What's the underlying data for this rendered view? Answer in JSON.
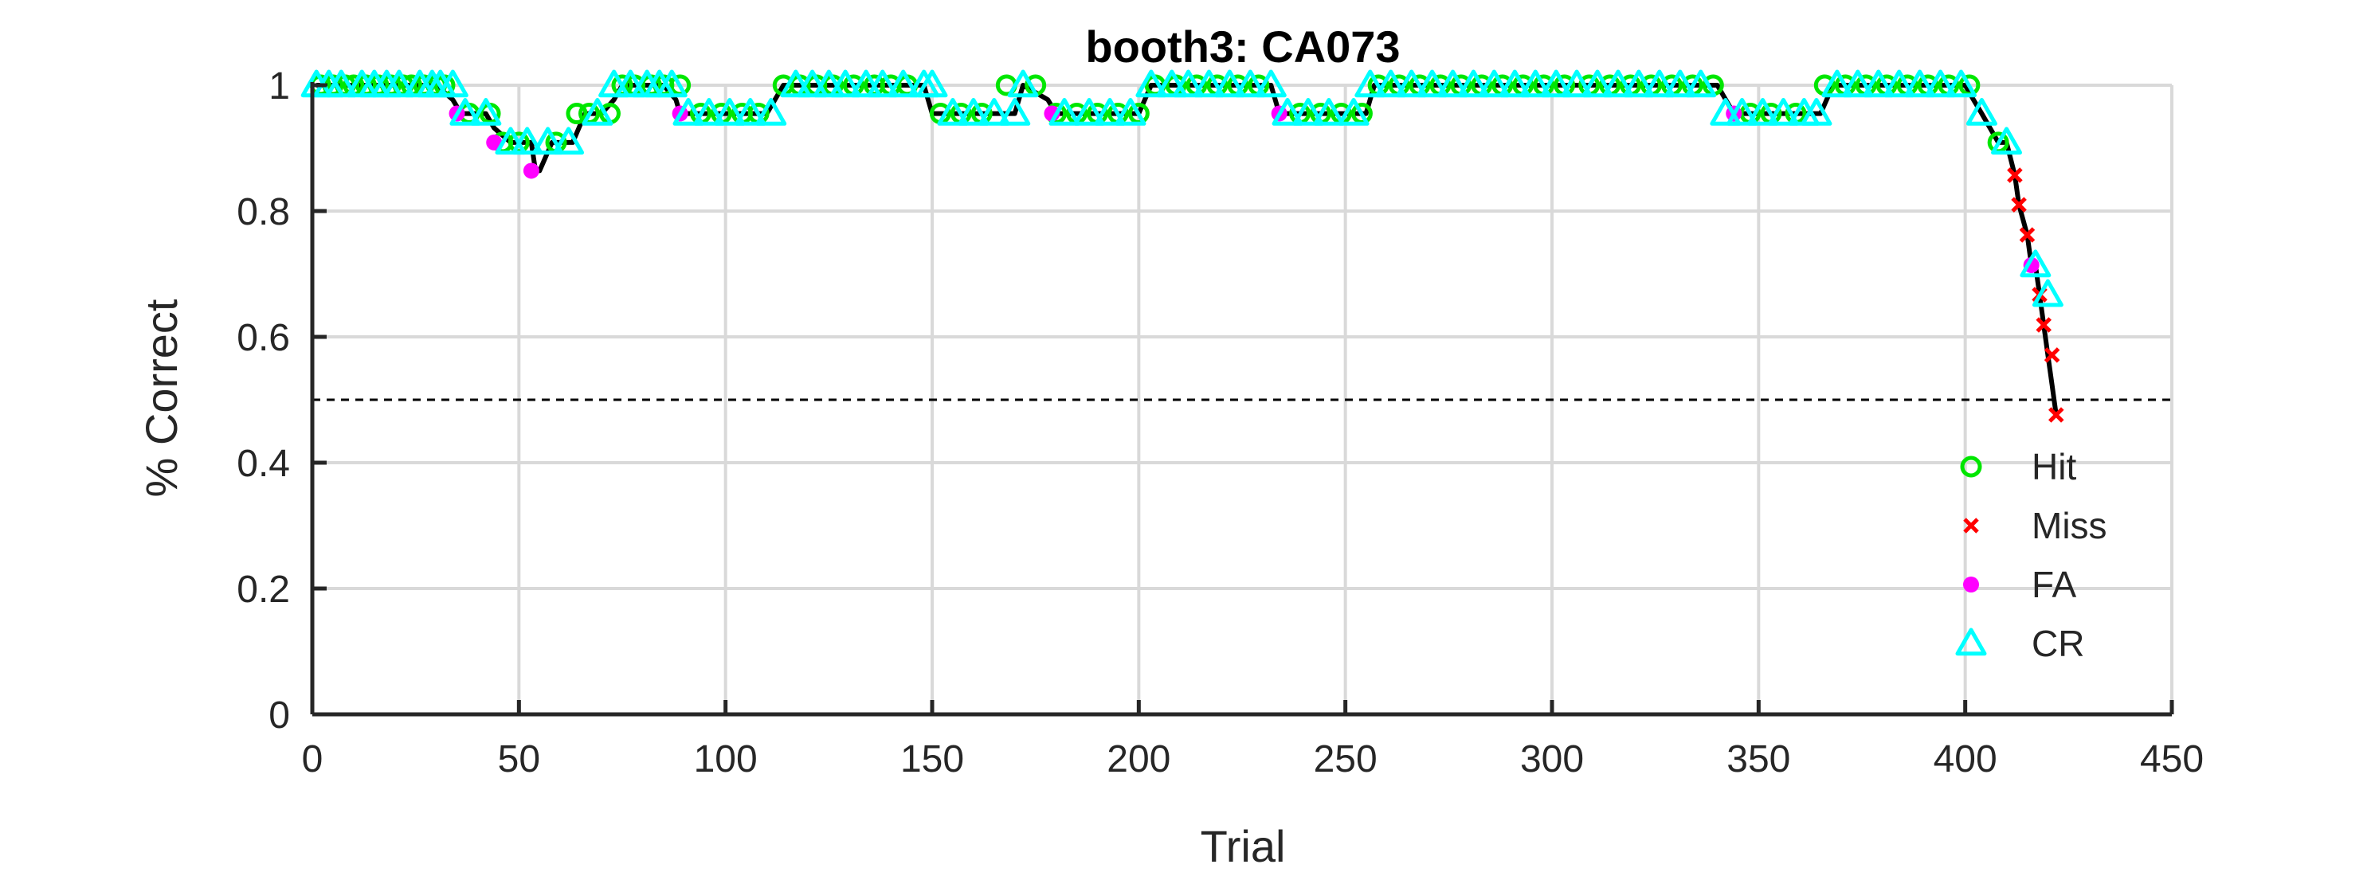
{
  "chart_data": {
    "type": "scatter",
    "title": "booth3: CA073",
    "xlabel": "Trial",
    "ylabel": "% Correct",
    "xlim": [
      0,
      450
    ],
    "ylim": [
      0,
      1
    ],
    "xticks": [
      0,
      50,
      100,
      150,
      200,
      250,
      300,
      350,
      400,
      450
    ],
    "yticks": [
      0,
      0.2,
      0.4,
      0.6,
      0.8,
      1
    ],
    "xtick_labels": [
      "0",
      "50",
      "100",
      "150",
      "200",
      "250",
      "300",
      "350",
      "400",
      "450"
    ],
    "ytick_labels": [
      "0",
      "0.2",
      "0.4",
      "0.6",
      "0.8",
      "1"
    ],
    "grid": true,
    "reference_line": {
      "y": 0.5,
      "style": "dashed",
      "color": "#000000"
    },
    "legend_position": "bottom-right",
    "legend": [
      "Hit",
      "Miss",
      "FA",
      "CR"
    ],
    "colors": {
      "Hit": "#00e600",
      "Miss": "#ff0000",
      "FA": "#ff00ff",
      "CR": "#00ffff",
      "line": "#000000",
      "grid": "#d9d9d9",
      "axis": "#262626"
    },
    "series": [
      {
        "name": "Hit",
        "marker": "circle",
        "x": [
          2,
          5,
          8,
          10,
          13,
          16,
          19,
          22,
          24,
          27,
          30,
          32,
          38,
          43,
          46,
          50,
          59,
          64,
          67,
          72,
          75,
          78,
          82,
          85,
          89,
          94,
          99,
          104,
          108,
          114,
          118,
          122,
          126,
          131,
          136,
          140,
          144,
          152,
          157,
          162,
          168,
          175,
          180,
          185,
          190,
          195,
          200,
          204,
          209,
          214,
          219,
          224,
          229,
          239,
          244,
          249,
          254,
          258,
          263,
          268,
          273,
          278,
          283,
          288,
          293,
          298,
          303,
          309,
          314,
          319,
          324,
          329,
          334,
          339,
          348,
          353,
          359,
          366,
          371,
          376,
          381,
          386,
          391,
          396,
          401,
          408
        ],
        "y": [
          1,
          1,
          1,
          1,
          1,
          1,
          1,
          1,
          1,
          1,
          1,
          1,
          0.955,
          0.955,
          0.909,
          0.909,
          0.909,
          0.955,
          0.955,
          0.955,
          1,
          1,
          1,
          1,
          1,
          0.955,
          0.955,
          0.955,
          0.955,
          1,
          1,
          1,
          1,
          1,
          1,
          1,
          1,
          0.955,
          0.955,
          0.955,
          1,
          1,
          0.955,
          0.955,
          0.955,
          0.955,
          0.955,
          1,
          1,
          1,
          1,
          1,
          1,
          0.955,
          0.955,
          0.955,
          0.955,
          1,
          1,
          1,
          1,
          1,
          1,
          1,
          1,
          1,
          1,
          1,
          1,
          1,
          1,
          1,
          1,
          1,
          0.955,
          0.955,
          0.955,
          1,
          1,
          1,
          1,
          1,
          1,
          1,
          1,
          0.909
        ]
      },
      {
        "name": "Miss",
        "marker": "x",
        "x": [
          412,
          413,
          415,
          418,
          419,
          421,
          422
        ],
        "y": [
          0.857,
          0.81,
          0.762,
          0.667,
          0.619,
          0.571,
          0.476
        ]
      },
      {
        "name": "FA",
        "marker": "dot",
        "x": [
          35,
          44,
          53,
          89,
          179,
          234,
          344,
          416
        ],
        "y": [
          0.955,
          0.909,
          0.864,
          0.955,
          0.955,
          0.955,
          0.955,
          0.714
        ]
      },
      {
        "name": "CR",
        "marker": "triangle",
        "x": [
          1,
          4,
          7,
          12,
          15,
          18,
          21,
          26,
          29,
          31,
          34,
          37,
          42,
          48,
          52,
          57,
          62,
          69,
          73,
          77,
          81,
          84,
          87,
          91,
          96,
          101,
          106,
          111,
          117,
          121,
          125,
          129,
          134,
          138,
          143,
          148,
          150,
          155,
          160,
          165,
          170,
          172,
          182,
          188,
          193,
          198,
          203,
          208,
          212,
          217,
          222,
          227,
          232,
          236,
          241,
          246,
          252,
          256,
          261,
          266,
          271,
          276,
          281,
          286,
          291,
          296,
          301,
          306,
          311,
          316,
          321,
          326,
          331,
          336,
          342,
          346,
          351,
          356,
          361,
          364,
          369,
          374,
          379,
          384,
          389,
          394,
          399,
          404,
          410,
          417,
          420
        ],
        "y": [
          1,
          1,
          1,
          1,
          1,
          1,
          1,
          1,
          1,
          1,
          1,
          0.955,
          0.955,
          0.909,
          0.909,
          0.909,
          0.909,
          0.955,
          1,
          1,
          1,
          1,
          1,
          0.955,
          0.955,
          0.955,
          0.955,
          0.955,
          1,
          1,
          1,
          1,
          1,
          1,
          1,
          1,
          1,
          0.955,
          0.955,
          0.955,
          0.955,
          1,
          0.955,
          0.955,
          0.955,
          0.955,
          1,
          1,
          1,
          1,
          1,
          1,
          1,
          0.955,
          0.955,
          0.955,
          0.955,
          1,
          1,
          1,
          1,
          1,
          1,
          1,
          1,
          1,
          1,
          1,
          1,
          1,
          1,
          1,
          1,
          1,
          0.955,
          0.955,
          0.955,
          0.955,
          0.955,
          0.955,
          1,
          1,
          1,
          1,
          1,
          1,
          1,
          0.955,
          0.909,
          0.714,
          0.667
        ]
      }
    ],
    "performance_line": {
      "x": [
        1,
        15,
        30,
        34,
        36,
        42,
        44,
        48,
        53,
        54,
        55,
        58,
        63,
        66,
        70,
        73,
        75,
        85,
        88,
        89,
        91,
        110,
        114,
        148,
        150,
        170,
        172,
        178,
        180,
        200,
        203,
        232,
        234,
        255,
        257,
        340,
        344,
        365,
        368,
        400,
        402,
        404,
        406,
        408,
        410,
        412,
        413,
        415,
        416,
        417,
        418,
        419,
        420,
        421,
        422
      ],
      "y": [
        1,
        1,
        1,
        0.977,
        0.955,
        0.955,
        0.932,
        0.909,
        0.909,
        0.864,
        0.864,
        0.909,
        0.909,
        0.955,
        0.955,
        0.977,
        1,
        1,
        0.977,
        0.955,
        0.955,
        0.955,
        1,
        1,
        0.955,
        0.955,
        1,
        0.977,
        0.955,
        0.955,
        1,
        1,
        0.955,
        0.955,
        1,
        1,
        0.955,
        0.955,
        1,
        1,
        0.977,
        0.955,
        0.932,
        0.909,
        0.909,
        0.857,
        0.81,
        0.762,
        0.714,
        0.714,
        0.667,
        0.619,
        0.571,
        0.524,
        0.476
      ]
    }
  }
}
